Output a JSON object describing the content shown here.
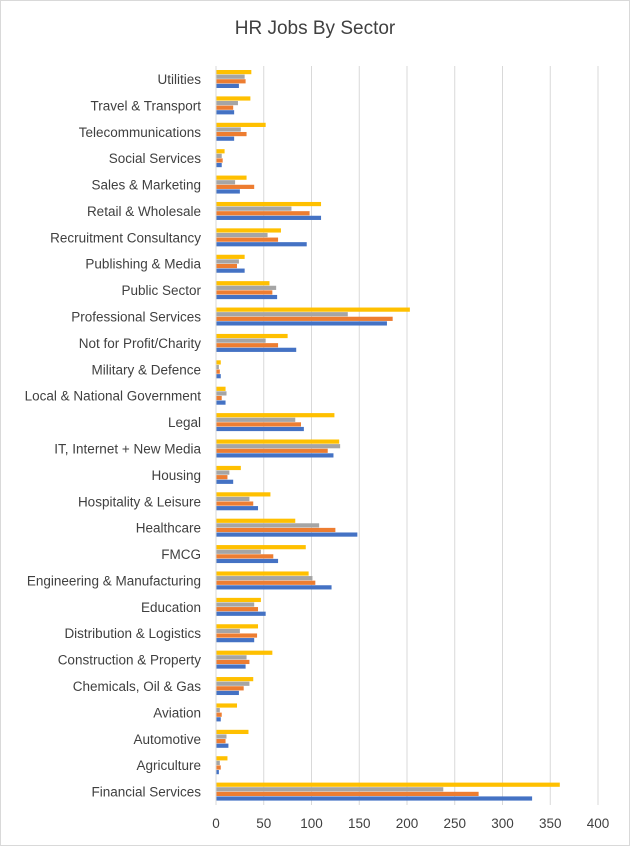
{
  "chart_data": {
    "type": "bar",
    "orientation": "horizontal",
    "title": "HR Jobs By Sector",
    "xlabel": "",
    "ylabel": "",
    "xlim": [
      0,
      400
    ],
    "xticks": [
      0,
      50,
      100,
      150,
      200,
      250,
      300,
      350,
      400
    ],
    "grid": "vertical",
    "legend": "none",
    "categories": [
      "Utilities",
      "Travel & Transport",
      "Telecommunications",
      "Social Services",
      "Sales & Marketing",
      "Retail & Wholesale",
      "Recruitment Consultancy",
      "Publishing & Media",
      "Public Sector",
      "Professional Services",
      "Not for Profit/Charity",
      "Military & Defence",
      "Local & National Government",
      "Legal",
      "IT, Internet + New Media",
      "Housing",
      "Hospitality & Leisure",
      "Healthcare",
      "FMCG",
      "Engineering & Manufacturing",
      "Education",
      "Distribution & Logistics",
      "Construction & Property",
      "Chemicals, Oil & Gas",
      "Aviation",
      "Automotive",
      "Agriculture",
      "Financial Services"
    ],
    "series": [
      {
        "color": "#ffc000",
        "values": [
          37,
          36,
          52,
          9,
          32,
          110,
          68,
          30,
          56,
          203,
          75,
          5,
          10,
          124,
          129,
          26,
          57,
          83,
          94,
          97,
          47,
          44,
          59,
          39,
          22,
          34,
          12,
          360
        ]
      },
      {
        "color": "#a5a5a5",
        "values": [
          30,
          23,
          26,
          6,
          20,
          79,
          54,
          24,
          63,
          138,
          52,
          3,
          11,
          83,
          130,
          14,
          35,
          108,
          47,
          101,
          40,
          25,
          32,
          35,
          4,
          11,
          4,
          238
        ]
      },
      {
        "color": "#ed7d31",
        "values": [
          31,
          18,
          32,
          7,
          40,
          98,
          65,
          22,
          59,
          185,
          65,
          4,
          6,
          89,
          117,
          12,
          39,
          125,
          60,
          104,
          44,
          43,
          35,
          29,
          6,
          10,
          5,
          275
        ]
      },
      {
        "color": "#4472c4",
        "values": [
          24,
          19,
          19,
          6,
          25,
          110,
          95,
          30,
          64,
          179,
          84,
          5,
          10,
          92,
          123,
          18,
          44,
          148,
          65,
          121,
          52,
          40,
          31,
          24,
          5,
          13,
          3,
          331
        ]
      }
    ]
  }
}
